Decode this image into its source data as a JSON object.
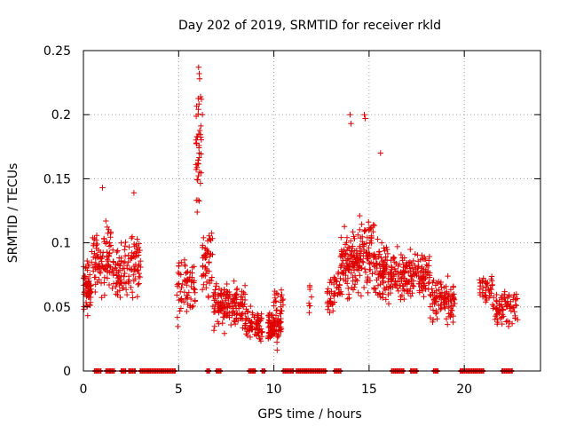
{
  "chart_data": {
    "type": "scatter",
    "title": "Day 202 of 2019, SRMTID for receiver rkld",
    "xlabel": "GPS time / hours",
    "ylabel": "SRMTID / TECUs",
    "xlim": [
      0,
      24
    ],
    "ylim": [
      0,
      0.25
    ],
    "xticks": [
      0,
      5,
      10,
      15,
      20
    ],
    "yticks": [
      0,
      0.05,
      0.1,
      0.15,
      0.2,
      0.25
    ],
    "xtick_labels": [
      "0",
      "5",
      "10",
      "15",
      "20"
    ],
    "ytick_labels": [
      "0",
      "0.05",
      "0.1",
      "0.15",
      "0.2",
      "0.25"
    ],
    "grid": true,
    "marker": "+",
    "color": "#e00000",
    "series": [
      {
        "name": "SRMTID",
        "clusters": [
          {
            "x_range": [
              0.0,
              0.4
            ],
            "mean": 0.065,
            "spread": 0.025,
            "count": 60
          },
          {
            "x_range": [
              0.4,
              1.0
            ],
            "mean": 0.085,
            "spread": 0.025,
            "count": 50
          },
          {
            "x_range": [
              1.0,
              1.5
            ],
            "mean": 0.09,
            "spread": 0.03,
            "count": 45
          },
          {
            "x_range": [
              1.5,
              2.5
            ],
            "mean": 0.075,
            "spread": 0.025,
            "count": 75
          },
          {
            "x_range": [
              2.5,
              3.0
            ],
            "mean": 0.085,
            "spread": 0.03,
            "count": 45
          },
          {
            "x_range": [
              4.9,
              5.9
            ],
            "mean": 0.065,
            "spread": 0.025,
            "count": 70
          },
          {
            "x_range": [
              5.9,
              6.2
            ],
            "mean": 0.17,
            "spread": 0.05,
            "count": 40
          },
          {
            "x_range": [
              6.2,
              6.8
            ],
            "mean": 0.085,
            "spread": 0.025,
            "count": 50
          },
          {
            "x_range": [
              6.8,
              8.5
            ],
            "mean": 0.05,
            "spread": 0.02,
            "count": 150
          },
          {
            "x_range": [
              8.5,
              9.4
            ],
            "mean": 0.035,
            "spread": 0.015,
            "count": 80
          },
          {
            "x_range": [
              9.7,
              10.4
            ],
            "mean": 0.035,
            "spread": 0.015,
            "count": 90
          },
          {
            "x_range": [
              10.0,
              10.5
            ],
            "mean": 0.055,
            "spread": 0.012,
            "count": 20
          },
          {
            "x_range": [
              11.8,
              12.0
            ],
            "mean": 0.055,
            "spread": 0.02,
            "count": 8
          },
          {
            "x_range": [
              12.8,
              13.5
            ],
            "mean": 0.06,
            "spread": 0.02,
            "count": 50
          },
          {
            "x_range": [
              13.5,
              14.5
            ],
            "mean": 0.085,
            "spread": 0.03,
            "count": 110
          },
          {
            "x_range": [
              14.5,
              15.5
            ],
            "mean": 0.09,
            "spread": 0.035,
            "count": 100
          },
          {
            "x_range": [
              15.5,
              16.5
            ],
            "mean": 0.075,
            "spread": 0.025,
            "count": 100
          },
          {
            "x_range": [
              16.5,
              18.2
            ],
            "mean": 0.075,
            "spread": 0.02,
            "count": 150
          },
          {
            "x_range": [
              18.2,
              19.5
            ],
            "mean": 0.055,
            "spread": 0.02,
            "count": 100
          },
          {
            "x_range": [
              20.8,
              21.5
            ],
            "mean": 0.065,
            "spread": 0.015,
            "count": 40
          },
          {
            "x_range": [
              21.5,
              22.8
            ],
            "mean": 0.05,
            "spread": 0.015,
            "count": 80
          }
        ],
        "peaks": [
          {
            "x": 6.05,
            "y": 0.237
          },
          {
            "x": 6.08,
            "y": 0.232
          },
          {
            "x": 6.1,
            "y": 0.228
          },
          {
            "x": 6.15,
            "y": 0.214
          },
          {
            "x": 6.2,
            "y": 0.212
          },
          {
            "x": 6.25,
            "y": 0.2
          },
          {
            "x": 14.0,
            "y": 0.2
          },
          {
            "x": 14.05,
            "y": 0.193
          },
          {
            "x": 14.75,
            "y": 0.2
          },
          {
            "x": 14.8,
            "y": 0.197
          },
          {
            "x": 15.6,
            "y": 0.17
          },
          {
            "x": 1.0,
            "y": 0.143
          },
          {
            "x": 2.65,
            "y": 0.139
          }
        ],
        "zero_intervals": [
          [
            0.6,
            0.9
          ],
          [
            1.2,
            1.6
          ],
          [
            2.0,
            2.2
          ],
          [
            2.4,
            2.7
          ],
          [
            3.0,
            4.8
          ],
          [
            6.5,
            6.6
          ],
          [
            7.0,
            7.2
          ],
          [
            8.7,
            9.0
          ],
          [
            9.4,
            9.5
          ],
          [
            10.5,
            11.0
          ],
          [
            11.2,
            11.5
          ],
          [
            11.6,
            12.7
          ],
          [
            13.2,
            13.5
          ],
          [
            16.2,
            16.8
          ],
          [
            17.2,
            17.5
          ],
          [
            18.4,
            18.6
          ],
          [
            19.8,
            21.0
          ],
          [
            22.0,
            22.5
          ]
        ]
      }
    ]
  }
}
